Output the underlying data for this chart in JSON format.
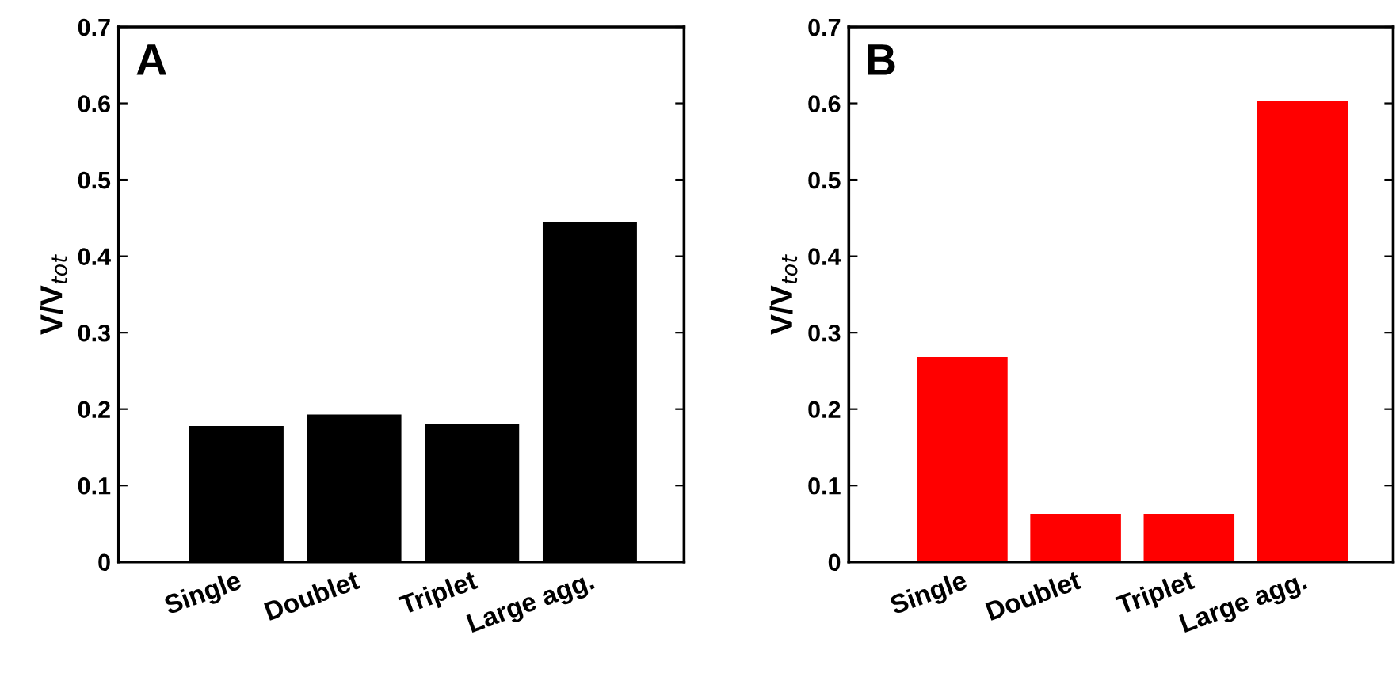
{
  "chart_data": [
    {
      "type": "bar",
      "ylabel": "V/V$_{tot}$",
      "annotations": [
        "A"
      ],
      "categories": [
        "Single",
        "Doublet",
        "Triplet",
        "Large agg."
      ],
      "values": [
        0.178,
        0.193,
        0.181,
        0.445
      ],
      "color": "#000000",
      "ylim": [
        0,
        0.7
      ],
      "yticks": [
        0,
        0.1,
        0.2,
        0.3,
        0.4,
        0.5,
        0.6,
        0.7
      ],
      "grid": false,
      "legend": false
    },
    {
      "type": "bar",
      "ylabel": "V/V$_{tot}$",
      "annotations": [
        "B"
      ],
      "categories": [
        "Single",
        "Doublet",
        "Triplet",
        "Large agg."
      ],
      "values": [
        0.268,
        0.063,
        0.063,
        0.603
      ],
      "color": "#ff0000",
      "ylim": [
        0,
        0.7
      ],
      "yticks": [
        0,
        0.1,
        0.2,
        0.3,
        0.4,
        0.5,
        0.6,
        0.7
      ],
      "grid": false,
      "legend": false
    }
  ]
}
